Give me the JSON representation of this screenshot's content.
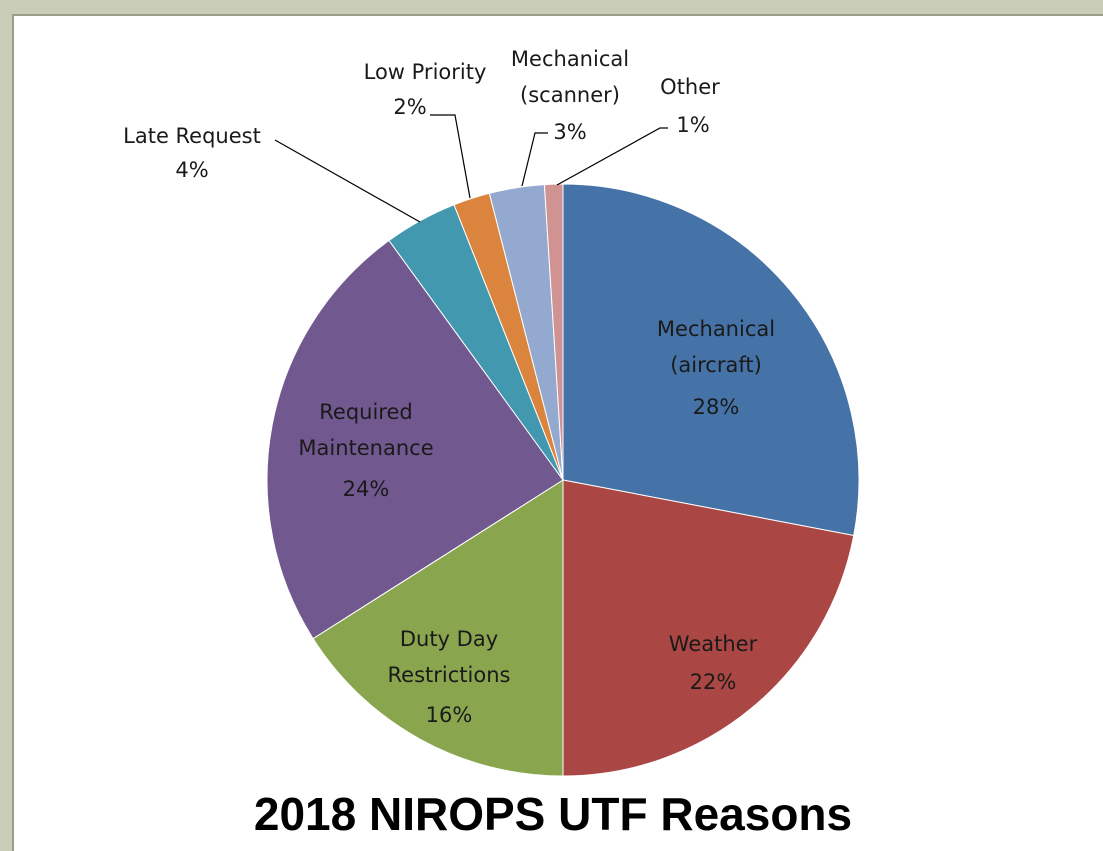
{
  "chart_data": {
    "type": "pie",
    "title": "2018 NIROPS UTF Reasons",
    "categories": [
      "Mechanical (aircraft)",
      "Weather",
      "Duty Day Restrictions",
      "Required Maintenance",
      "Late Request",
      "Low Priority",
      "Mechanical (scanner)",
      "Other"
    ],
    "values": [
      28,
      22,
      16,
      24,
      4,
      2,
      3,
      1
    ],
    "value_labels": [
      "28%",
      "22%",
      "16%",
      "24%",
      "4%",
      "2%",
      "3%",
      "1%"
    ],
    "colors": [
      "#4572a7",
      "#aa4643",
      "#89a54e",
      "#71588f",
      "#4198af",
      "#db843d",
      "#93a9cf",
      "#d19392"
    ]
  }
}
